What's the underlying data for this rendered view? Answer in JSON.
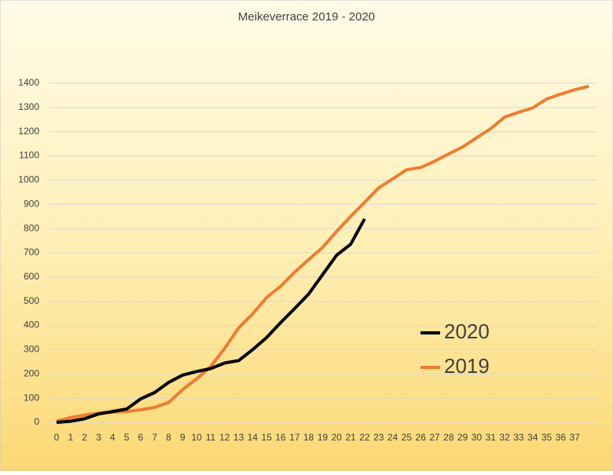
{
  "chart_data": {
    "type": "line",
    "title": "Meikeverrace 2019 - 2020",
    "categories": [
      "0",
      "1",
      "2",
      "3",
      "4",
      "5",
      "6",
      "7",
      "8",
      "9",
      "10",
      "11",
      "12",
      "13",
      "14",
      "15",
      "16",
      "17",
      "18",
      "19",
      "20",
      "21",
      "22",
      "23",
      "24",
      "25",
      "26",
      "27",
      "28",
      "29",
      "30",
      "31",
      "32",
      "33",
      "34",
      "35",
      "36",
      "37",
      null
    ],
    "series": [
      {
        "name": "2020",
        "color": "#000000",
        "values": [
          0,
          5,
          15,
          35,
          45,
          55,
          97,
          123,
          165,
          195,
          210,
          222,
          245,
          255,
          300,
          350,
          412,
          470,
          530,
          610,
          690,
          735,
          840,
          null,
          null,
          null,
          null,
          null,
          null,
          null,
          null,
          null,
          null,
          null,
          null,
          null,
          null,
          null,
          null
        ]
      },
      {
        "name": "2019",
        "color": "#ed7d31",
        "values": [
          5,
          20,
          30,
          38,
          42,
          45,
          52,
          62,
          82,
          135,
          180,
          230,
          305,
          390,
          448,
          515,
          562,
          620,
          672,
          722,
          788,
          850,
          908,
          968,
          1005,
          1043,
          1052,
          1078,
          1108,
          1137,
          1175,
          1212,
          1260,
          1280,
          1298,
          1335,
          1355,
          1373,
          1387
        ]
      }
    ],
    "ylim": [
      0,
      1400
    ],
    "yticks": [
      0,
      100,
      200,
      300,
      400,
      500,
      600,
      700,
      800,
      900,
      1000,
      1100,
      1200,
      1300,
      1400
    ],
    "grid": true,
    "legend": "right"
  }
}
